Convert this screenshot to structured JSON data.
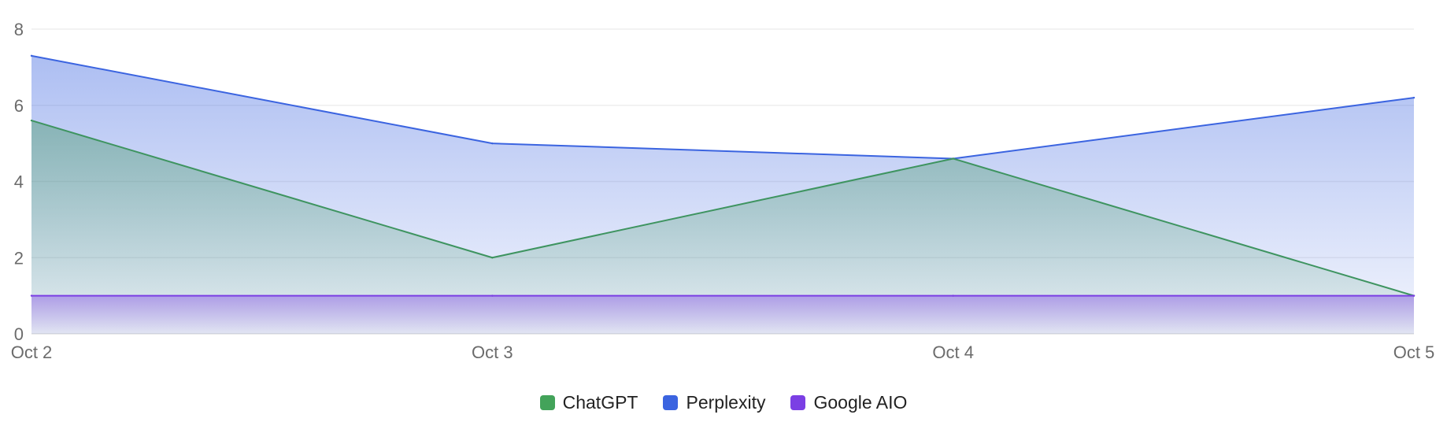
{
  "chart_data": {
    "type": "area",
    "categories": [
      "Oct 2",
      "Oct 3",
      "Oct 4",
      "Oct 5"
    ],
    "ylim": [
      0,
      8
    ],
    "yticks": [
      0,
      2,
      4,
      6,
      8
    ],
    "grid": true,
    "legend_position": "bottom-center",
    "series": [
      {
        "name": "Perplexity",
        "values": [
          7.3,
          5.0,
          4.6,
          6.2
        ],
        "color": "#3b64e0"
      },
      {
        "name": "ChatGPT",
        "values": [
          5.6,
          2.0,
          4.6,
          1.0
        ],
        "color": "#3e9460"
      },
      {
        "name": "Google AIO",
        "values": [
          1.0,
          1.0,
          1.0,
          1.0
        ],
        "color": "#7b3fe4"
      }
    ]
  },
  "legend": {
    "items": [
      {
        "label": "ChatGPT",
        "color": "#43a35a"
      },
      {
        "label": "Perplexity",
        "color": "#3b64e0"
      },
      {
        "label": "Google AIO",
        "color": "#7b3fe4"
      }
    ]
  }
}
